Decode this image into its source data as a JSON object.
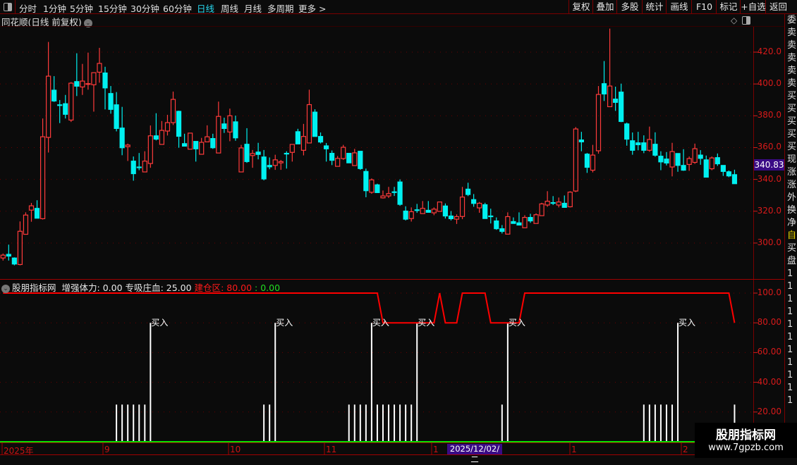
{
  "toolbar": {
    "tabs": [
      "分时",
      "1分钟",
      "5分钟",
      "15分钟",
      "30分钟",
      "60分钟",
      "日线",
      "周线",
      "月线",
      "多周期",
      "更多 >"
    ],
    "active_tab": "日线",
    "right_buttons": [
      "复权",
      "叠加",
      "多股",
      "统计",
      "画线",
      "F10",
      "标记",
      "+自选",
      "返回"
    ]
  },
  "chart_title": "同花顺(日线 前复权)",
  "colors": {
    "up": "#ff3b3b",
    "down": "#00f0f0",
    "axis": "#d81a1a",
    "grid": "#6a0000",
    "signal_line": "#ff0000",
    "bars": "#ffffff",
    "zero_line": "#00e000",
    "tag_bg": "#3a0b85"
  },
  "price_axis": {
    "ticks": [
      "420.0",
      "400.0",
      "380.0",
      "360.0",
      "340.0",
      "320.0",
      "300.0"
    ],
    "tick_values": [
      420,
      400,
      380,
      360,
      340,
      320,
      300
    ],
    "current_price": "340.83"
  },
  "chart_data": [
    {
      "type": "candlestick",
      "ohlc": [
        [
          290.6,
          293.4,
          289.0,
          292.4
        ],
        [
          292.9,
          299.0,
          289.0,
          291.8
        ],
        [
          290.6,
          291.0,
          286.0,
          286.8
        ],
        [
          286.5,
          313.6,
          286.0,
          307.4
        ],
        [
          305.5,
          319.3,
          305.5,
          317.6
        ],
        [
          320.7,
          325.2,
          313.4,
          323.4
        ],
        [
          321.8,
          326.9,
          315.6,
          315.6
        ],
        [
          315.3,
          378.3,
          314.8,
          366.8
        ],
        [
          366.4,
          426.4,
          356.9,
          404.9
        ],
        [
          396.1,
          404.9,
          388.7,
          389.3
        ],
        [
          386.9,
          389.9,
          375.4,
          386.6
        ],
        [
          387.6,
          393.1,
          378.3,
          380.9
        ],
        [
          377.3,
          401.2,
          376.1,
          400.5
        ],
        [
          401.5,
          419.3,
          392.4,
          398.6
        ],
        [
          398.1,
          412.6,
          393.1,
          401.8
        ],
        [
          400.0,
          419.7,
          396.4,
          400.2
        ],
        [
          399.5,
          407.1,
          382.6,
          407.1
        ],
        [
          407.4,
          422.7,
          400.8,
          412.9
        ],
        [
          406.9,
          410.8,
          384.0,
          397.5
        ],
        [
          394.0,
          398.7,
          381.3,
          384.0
        ],
        [
          386.9,
          394.9,
          370.2,
          372.0
        ],
        [
          372.3,
          385.6,
          355.2,
          359.9
        ],
        [
          360.6,
          362.5,
          351.6,
          361.6
        ],
        [
          351.5,
          354.4,
          339.2,
          343.6
        ],
        [
          347.8,
          356.6,
          345.8,
          347.6
        ],
        [
          344.7,
          357.7,
          344.7,
          351.5
        ],
        [
          350.0,
          373.9,
          347.3,
          367.4
        ],
        [
          367.4,
          381.6,
          364.5,
          365.3
        ],
        [
          362.0,
          376.7,
          362.0,
          370.8
        ],
        [
          370.4,
          380.6,
          367.6,
          375.7
        ],
        [
          375.7,
          395.2,
          374.2,
          390.3
        ],
        [
          382.8,
          383.2,
          359.9,
          367.1
        ],
        [
          362.5,
          368.7,
          360.9,
          360.9
        ],
        [
          359.0,
          369.1,
          359.0,
          369.1
        ],
        [
          363.9,
          363.9,
          351.2,
          359.2
        ],
        [
          355.8,
          366.1,
          355.8,
          363.3
        ],
        [
          363.6,
          374.0,
          363.6,
          366.8
        ],
        [
          365.7,
          368.7,
          359.2,
          359.9
        ],
        [
          356.6,
          388.9,
          356.6,
          379.6
        ],
        [
          374.9,
          378.8,
          369.2,
          372.0
        ],
        [
          369.8,
          384.5,
          364.0,
          380.0
        ],
        [
          376.2,
          380.1,
          364.3,
          366.1
        ],
        [
          344.7,
          361.7,
          344.7,
          359.8
        ],
        [
          362.1,
          372.2,
          350.4,
          351.2
        ],
        [
          355.0,
          358.5,
          347.3,
          356.3
        ],
        [
          357.2,
          363.0,
          352.6,
          355.7
        ],
        [
          354.1,
          358.5,
          339.4,
          340.3
        ],
        [
          348.8,
          353.8,
          346.4,
          347.9
        ],
        [
          348.8,
          355.5,
          346.0,
          352.3
        ],
        [
          350.4,
          352.2,
          346.0,
          351.2
        ],
        [
          356.4,
          357.7,
          346.8,
          356.2
        ],
        [
          357.0,
          362.0,
          351.2,
          362.0
        ],
        [
          370.0,
          371.8,
          362.3,
          362.3
        ],
        [
          358.3,
          374.9,
          355.1,
          367.0
        ],
        [
          362.9,
          396.4,
          362.9,
          387.0
        ],
        [
          382.3,
          384.1,
          367.0,
          367.0
        ],
        [
          367.0,
          369.5,
          362.6,
          363.5
        ],
        [
          361.1,
          362.9,
          351.2,
          359.2
        ],
        [
          356.4,
          358.2,
          349.0,
          352.0
        ],
        [
          348.2,
          354.7,
          348.2,
          353.2
        ],
        [
          353.1,
          361.7,
          352.3,
          360.2
        ],
        [
          356.4,
          356.4,
          350.4,
          350.4
        ],
        [
          348.7,
          359.2,
          348.7,
          356.7
        ],
        [
          357.7,
          357.7,
          346.0,
          346.8
        ],
        [
          345.0,
          346.8,
          328.8,
          332.9
        ],
        [
          331.9,
          340.6,
          331.0,
          339.7
        ],
        [
          336.6,
          337.3,
          331.7,
          331.7
        ],
        [
          328.4,
          333.0,
          328.0,
          329.6
        ],
        [
          329.6,
          335.3,
          328.3,
          331.1
        ],
        [
          332.2,
          335.3,
          329.6,
          332.0
        ],
        [
          338.4,
          340.0,
          323.4,
          324.3
        ],
        [
          320.1,
          323.1,
          314.2,
          315.0
        ],
        [
          315.4,
          322.4,
          313.5,
          319.7
        ],
        [
          320.9,
          324.6,
          319.0,
          320.7
        ],
        [
          318.5,
          326.4,
          318.5,
          321.8
        ],
        [
          320.6,
          326.4,
          319.3,
          319.3
        ],
        [
          319.0,
          322.4,
          317.5,
          321.3
        ],
        [
          319.9,
          325.8,
          319.9,
          325.8
        ],
        [
          323.3,
          324.9,
          315.4,
          317.0
        ],
        [
          317.0,
          320.1,
          314.2,
          315.3
        ],
        [
          315.0,
          318.0,
          312.0,
          316.6
        ],
        [
          316.7,
          335.3,
          315.0,
          328.9
        ],
        [
          333.9,
          337.9,
          329.5,
          330.5
        ],
        [
          327.3,
          330.8,
          322.8,
          324.9
        ],
        [
          322.1,
          325.8,
          319.0,
          325.0
        ],
        [
          324.1,
          325.3,
          315.4,
          315.4
        ],
        [
          317.0,
          321.6,
          312.3,
          316.9
        ],
        [
          313.9,
          316.1,
          308.3,
          309.0
        ],
        [
          309.0,
          311.3,
          306.0,
          307.3
        ],
        [
          305.6,
          319.3,
          305.6,
          316.6
        ],
        [
          313.5,
          316.1,
          312.3,
          312.3
        ],
        [
          312.7,
          319.3,
          311.3,
          311.3
        ],
        [
          309.6,
          317.5,
          309.6,
          316.1
        ],
        [
          316.1,
          318.4,
          312.7,
          313.9
        ],
        [
          312.3,
          318.7,
          312.3,
          317.8
        ],
        [
          317.2,
          325.3,
          317.2,
          324.6
        ],
        [
          323.9,
          332.6,
          322.8,
          326.3
        ],
        [
          325.4,
          329.5,
          323.9,
          325.2
        ],
        [
          323.9,
          328.6,
          322.4,
          325.8
        ],
        [
          325.0,
          329.9,
          322.4,
          322.4
        ],
        [
          322.8,
          332.6,
          322.4,
          332.0
        ],
        [
          332.7,
          372.9,
          332.0,
          371.7
        ],
        [
          364.8,
          369.9,
          357.7,
          363.6
        ],
        [
          355.9,
          356.6,
          344.1,
          347.6
        ],
        [
          345.8,
          361.7,
          344.4,
          355.3
        ],
        [
          358.0,
          398.7,
          356.2,
          393.4
        ],
        [
          400.2,
          414.4,
          389.3,
          393.7
        ],
        [
          385.7,
          434.8,
          385.7,
          398.7
        ],
        [
          390.5,
          398.3,
          383.1,
          388.4
        ],
        [
          394.9,
          400.2,
          376.0,
          376.4
        ],
        [
          374.9,
          375.7,
          361.2,
          365.3
        ],
        [
          364.3,
          369.5,
          355.5,
          358.3
        ],
        [
          363.0,
          369.9,
          358.3,
          361.8
        ],
        [
          363.0,
          367.7,
          356.5,
          358.3
        ],
        [
          358.3,
          373.2,
          357.4,
          365.1
        ],
        [
          362.1,
          369.6,
          354.3,
          355.2
        ],
        [
          354.6,
          357.7,
          345.8,
          351.0
        ],
        [
          352.8,
          357.2,
          348.8,
          350.3
        ],
        [
          347.8,
          363.0,
          341.9,
          357.5
        ],
        [
          356.3,
          356.3,
          344.8,
          348.8
        ],
        [
          348.8,
          359.0,
          345.4,
          345.8
        ],
        [
          349.4,
          354.4,
          345.4,
          353.1
        ],
        [
          350.7,
          362.5,
          349.8,
          359.3
        ],
        [
          355.3,
          358.4,
          349.2,
          353.2
        ],
        [
          352.3,
          355.0,
          341.4,
          341.4
        ],
        [
          346.7,
          354.4,
          345.8,
          353.5
        ],
        [
          353.7,
          356.3,
          348.5,
          349.8
        ],
        [
          348.8,
          348.8,
          342.2,
          345.0
        ],
        [
          344.8,
          345.6,
          341.4,
          342.2
        ],
        [
          343.0,
          346.1,
          337.3,
          337.3
        ]
      ],
      "ylim": [
        280,
        440
      ]
    },
    {
      "type": "bar+line",
      "title": "股朋指标网",
      "legend": [
        {
          "name": "增强体力",
          "value": "0.00",
          "color": "#e8e8e8"
        },
        {
          "name": "专吸庄血",
          "value": "25.00",
          "color": "#e8e8e8"
        },
        {
          "name": "建仓区",
          "value": "80.00",
          "color": "#ff1a1a"
        },
        {
          "name": "",
          "value": "0.00",
          "color": "#22dd22"
        }
      ],
      "ticks": [
        "100.0",
        "80.00",
        "60.00",
        "40.00",
        "20.00"
      ],
      "tick_values": [
        100,
        80,
        60,
        40,
        20
      ],
      "ylim": [
        0,
        105
      ],
      "signal_bars": [
        [
          20,
          25
        ],
        [
          21,
          25
        ],
        [
          22,
          25
        ],
        [
          23,
          25
        ],
        [
          24,
          25
        ],
        [
          25,
          25
        ],
        [
          26,
          80
        ],
        [
          46,
          25
        ],
        [
          47,
          25
        ],
        [
          48,
          80
        ],
        [
          61,
          25
        ],
        [
          62,
          25
        ],
        [
          63,
          25
        ],
        [
          64,
          25
        ],
        [
          65,
          80
        ],
        [
          66,
          25
        ],
        [
          67,
          25
        ],
        [
          68,
          25
        ],
        [
          69,
          25
        ],
        [
          70,
          25
        ],
        [
          71,
          25
        ],
        [
          72,
          25
        ],
        [
          73,
          80
        ],
        [
          88,
          25
        ],
        [
          89,
          80
        ],
        [
          113,
          25
        ],
        [
          114,
          25
        ],
        [
          115,
          25
        ],
        [
          116,
          25
        ],
        [
          117,
          25
        ],
        [
          118,
          25
        ],
        [
          119,
          80
        ],
        [
          129,
          25
        ]
      ],
      "buy_label": "买入",
      "line_runs": [
        [
          0,
          66,
          100
        ],
        [
          67,
          76,
          80
        ],
        [
          77,
          77,
          100
        ],
        [
          78,
          80,
          80
        ],
        [
          81,
          85,
          100
        ],
        [
          86,
          91,
          80
        ],
        [
          92,
          128,
          100
        ],
        [
          129,
          129,
          80
        ]
      ]
    }
  ],
  "date_axis": {
    "labels": [
      "2025年",
      "9",
      "10",
      "11",
      "1",
      "1",
      "2"
    ],
    "cursor_date": "2025/12/02/二"
  },
  "side_column": [
    "委",
    "卖",
    "卖",
    "卖",
    "卖",
    "卖",
    "买",
    "买",
    "买",
    "买",
    "买",
    "现",
    "涨",
    "涨",
    "外",
    "换",
    "净",
    "自",
    "买",
    "盘",
    "1",
    "1",
    "1",
    "1",
    "1",
    "1",
    "1",
    "1",
    "1",
    "1",
    "1"
  ],
  "watermark": {
    "name": "股朋指标网",
    "url": "www.7gpzb.com"
  }
}
